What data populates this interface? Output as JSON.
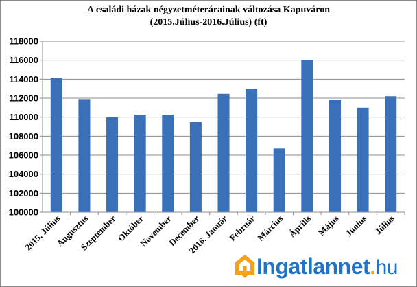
{
  "chart_data": {
    "type": "bar",
    "title_line1": "A családi házak négyzetméterárainak  változása Kapuváron",
    "title_line2": "(2015.Július-2016.Július)  (ft)",
    "categories": [
      "2015. Július",
      "Augusztus",
      "Szeptember",
      "Október",
      "November",
      "December",
      "2016. Január",
      "Február",
      "Március",
      "Április",
      "Május",
      "Június",
      "Július"
    ],
    "values": [
      114100,
      111900,
      110000,
      110250,
      110250,
      109500,
      112450,
      113000,
      106700,
      116000,
      111850,
      111000,
      112200
    ],
    "ylim": [
      100000,
      118000
    ],
    "yticks": [
      "100000",
      "102000",
      "104000",
      "106000",
      "108000",
      "110000",
      "112000",
      "114000",
      "116000",
      "118000"
    ],
    "xlabel": "",
    "ylabel": "",
    "grid": true,
    "bar_color": "#3a70b8",
    "grid_color": "#8c8c8c"
  },
  "watermark": {
    "brand": "Ingatlannet",
    "dot": ".",
    "tld": "hu",
    "brand_color": "#1f73c8",
    "accent_color": "#f5a21a"
  }
}
